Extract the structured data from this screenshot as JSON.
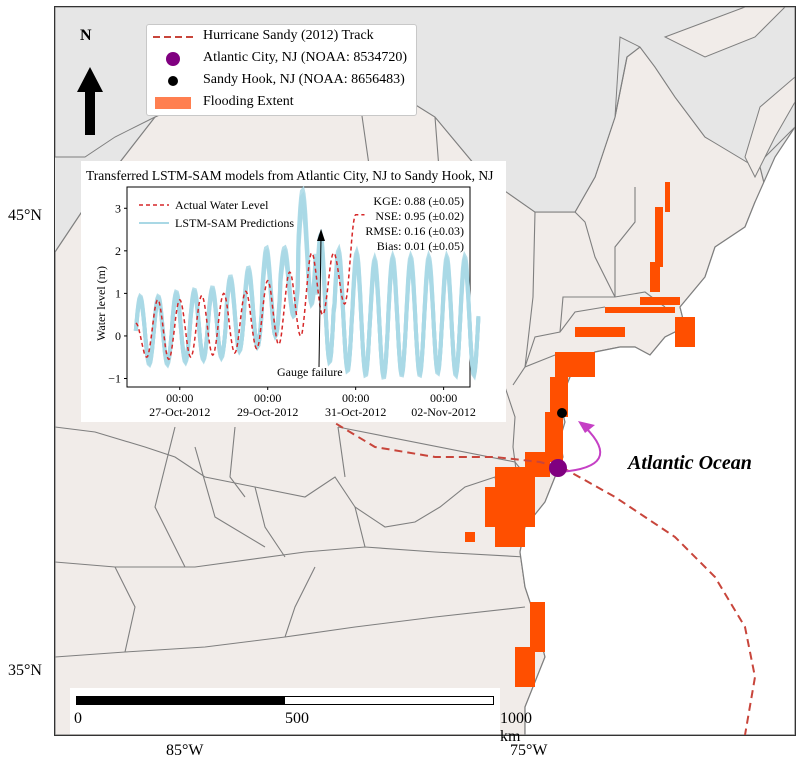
{
  "map": {
    "lat_labels": [
      "45°N",
      "35°N"
    ],
    "lon_labels": [
      "85°W",
      "75°W"
    ],
    "ocean_label": "Atlantic Ocean",
    "north_label": "N",
    "colors": {
      "land": "#f1ece9",
      "outside": "#e6e6e6",
      "border": "#808080",
      "flood": "#ff4f00",
      "track": "#c8453b",
      "atlantic_city": "#800080",
      "sandy_hook": "#000000",
      "arrow": "#c540c5"
    }
  },
  "legend": {
    "items": [
      {
        "label": "Hurricane Sandy (2012) Track",
        "symbol": "dashed-line"
      },
      {
        "label": "Atlantic City, NJ (NOAA: 8534720)",
        "symbol": "purple-dot"
      },
      {
        "label": "Sandy Hook, NJ (NOAA: 8656483)",
        "symbol": "black-dot"
      },
      {
        "label": "Flooding Extent",
        "symbol": "orange-patch"
      }
    ]
  },
  "scalebar": {
    "labels": [
      "0",
      "500",
      "1000  km"
    ]
  },
  "inset": {
    "title": "Transferred LSTM-SAM models from Atlantic City, NJ to Sandy Hook, NJ",
    "ylabel": "Water level (m)",
    "yticks": [
      "3",
      "2",
      "1",
      "0",
      "−1"
    ],
    "xticks": [
      {
        "time": "00:00",
        "date": "27-Oct-2012"
      },
      {
        "time": "00:00",
        "date": "29-Oct-2012"
      },
      {
        "time": "00:00",
        "date": "31-Oct-2012"
      },
      {
        "time": "00:00",
        "date": "02-Nov-2012"
      }
    ],
    "legend": [
      "Actual Water Level",
      "LSTM-SAM Predictions"
    ],
    "metrics": [
      "KGE: 0.88 (±0.05)",
      "NSE: 0.95 (±0.02)",
      "RMSE: 0.16 (±0.03)",
      "Bias: 0.01 (±0.05)"
    ],
    "annotation": "Gauge failure"
  },
  "chart_data": {
    "type": "line",
    "ylabel": "Water level (m)",
    "ylim": [
      -1.2,
      3.5
    ],
    "series": [
      {
        "name": "Actual Water Level",
        "style": "red dashed",
        "x_days_from_26Oct": [
          0.0,
          0.25,
          0.5,
          0.75,
          1.0,
          1.25,
          1.5,
          1.75,
          2.0,
          2.25,
          2.5,
          2.75,
          3.0,
          3.25,
          3.5,
          3.75,
          4.0,
          4.25,
          4.5,
          4.75,
          5.0,
          5.2
        ],
        "values": [
          0.3,
          -0.5,
          0.85,
          -0.55,
          0.85,
          -0.5,
          0.95,
          -0.45,
          1.0,
          -0.4,
          1.05,
          -0.3,
          1.3,
          -0.2,
          1.5,
          0.0,
          1.95,
          0.5,
          1.95,
          0.75,
          2.85,
          2.85
        ]
      },
      {
        "name": "LSTM-SAM Predictions",
        "style": "light blue band",
        "peaks": [
          0.9,
          0.9,
          1.0,
          1.05,
          1.1,
          1.35,
          1.55,
          2.0,
          2.0,
          3.3,
          2.3,
          1.95,
          1.9,
          1.75,
          1.8,
          1.8,
          1.8,
          1.8,
          1.8
        ],
        "troughs": [
          -0.65,
          -0.65,
          -0.6,
          -0.55,
          -0.5,
          -0.35,
          -0.25,
          0.0,
          0.5,
          0.8,
          -0.6,
          -0.8,
          -0.9,
          -0.95,
          -0.9,
          -0.9,
          -0.85,
          -0.9,
          -0.9
        ]
      }
    ]
  }
}
